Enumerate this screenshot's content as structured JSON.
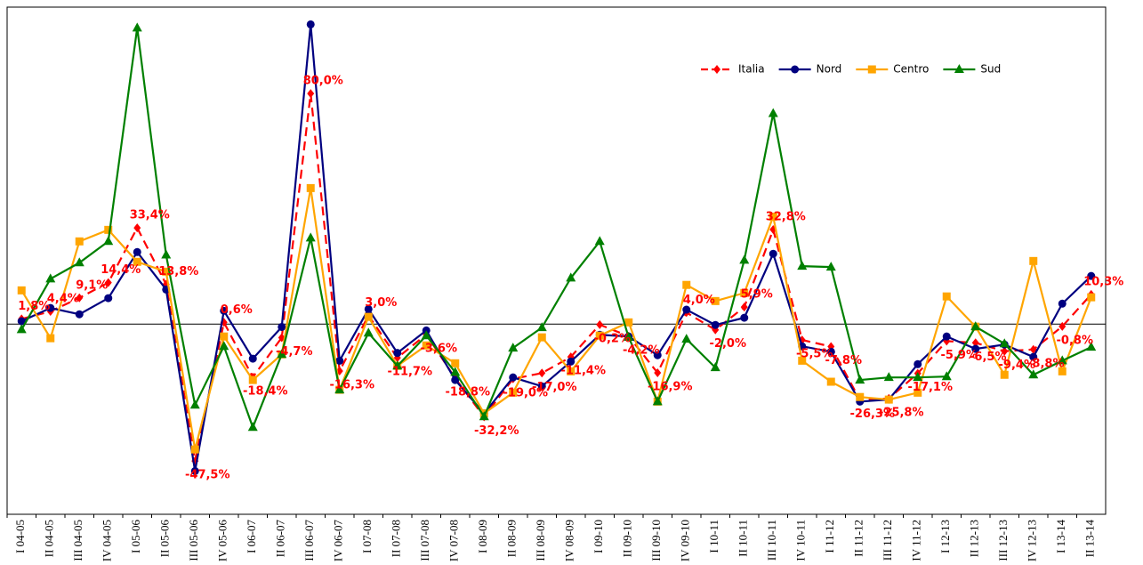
{
  "chart_data": {
    "type": "line",
    "categories": [
      "I 04-05",
      "II 04-05",
      "III 04-05",
      "IV 04-05",
      "I 05-06",
      "II 05-06",
      "III 05-06",
      "IV 05-06",
      "I 06-07",
      "II 06-07",
      "III 06-07",
      "IV 06-07",
      "I 07-08",
      "II 07-08",
      "III 07-08",
      "IV 07-08",
      "I 08-09",
      "II 08-09",
      "III 08-09",
      "IV 08-09",
      "I 09-10",
      "II 09-10",
      "III 09-10",
      "IV 09-10",
      "I 10-11",
      "II 10-11",
      "III 10-11",
      "IV 10-11",
      "I 11-12",
      "II 11-12",
      "III 11-12",
      "IV 11-12",
      "I 12-13",
      "II 12-13",
      "III 12-13",
      "IV 12-13",
      "I 13-14",
      "II 13-14"
    ],
    "ylim": [
      -66,
      110
    ],
    "legend": "top-right",
    "series": [
      {
        "name": "Italia",
        "color": "#ff0000",
        "marker": "diamond",
        "dashed": true,
        "values": [
          1.8,
          4.4,
          9.1,
          14.4,
          33.4,
          13.8,
          -47.5,
          0.6,
          -18.4,
          -4.7,
          80.0,
          -16.3,
          3.0,
          -11.7,
          -3.6,
          -18.8,
          -32.2,
          -19.0,
          -17.0,
          -11.4,
          -0.2,
          -4.2,
          -16.9,
          4.0,
          -2.0,
          5.9,
          32.8,
          -5.5,
          -7.8,
          -26.3,
          -25.8,
          -17.1,
          -5.9,
          -6.5,
          -9.4,
          -8.8,
          -0.8,
          10.3
        ],
        "value_labels": [
          "1,8%",
          "4,4%",
          "9,1%",
          "14,4%",
          "33,4%",
          "13,8%",
          "-47,5%",
          "0,6%",
          "-18,4%",
          "-4,7%",
          "80,0%",
          "-16,3%",
          "3,0%",
          "-11,7%",
          "-3,6%",
          "-18,8%",
          "-32,2%",
          "-19,0%",
          "-17,0%",
          "-11,4%",
          "-0,2%",
          "-4,2%",
          "-16,9%",
          "4,0%",
          "-2,0%",
          "5,9%",
          "32,8%",
          "-5,5%",
          "-7,8%",
          "-26,3%",
          "-25,8%",
          "-17,1%",
          "-5,9%",
          "-6,5%",
          "-9,4%",
          "-8,8%",
          "-0,8%",
          "10,3%"
        ]
      },
      {
        "name": "Nord",
        "color": "#000080",
        "marker": "circle",
        "values": [
          1,
          5.6,
          3.4,
          9,
          25,
          12,
          -51,
          4.6,
          -12,
          -1,
          104,
          -12.7,
          5.2,
          -10,
          -2.2,
          -19.4,
          -31,
          -18.5,
          -21.6,
          -13,
          -3.7,
          -4.3,
          -10.8,
          5,
          -0.3,
          2.2,
          24.4,
          -7.7,
          -9.6,
          -26.9,
          -26.2,
          -13.9,
          -4.3,
          -8.6,
          -7.1,
          -11.4,
          7.1,
          16.7
        ]
      },
      {
        "name": "Centro",
        "color": "#ffa500",
        "marker": "square",
        "values": [
          11.7,
          -4.9,
          28.7,
          32.7,
          21.6,
          18.2,
          -43.5,
          -4.3,
          -19.4,
          -10.5,
          47.2,
          -22.8,
          2.5,
          -14.5,
          -7.4,
          -13.6,
          -31,
          -23.8,
          -4.6,
          -16.4,
          -4,
          0.6,
          -26.9,
          13.6,
          8,
          10.8,
          37.3,
          -12.7,
          -20,
          -25.3,
          -26.2,
          -23.8,
          9.6,
          -0.9,
          -17.6,
          21.9,
          -16.4,
          9.3
        ]
      },
      {
        "name": "Sud",
        "color": "#008000",
        "marker": "triangle",
        "values": [
          -1.9,
          15.7,
          21.3,
          28.7,
          102.8,
          24,
          -28.1,
          -7.7,
          -35.8,
          -10.5,
          29.9,
          -22.8,
          -3.1,
          -14.5,
          -4,
          -16.7,
          -32.1,
          -8.3,
          -1.2,
          16,
          28.7,
          -4.6,
          -26.9,
          -5.2,
          -15.1,
          22.2,
          73.1,
          20.1,
          19.8,
          -19.4,
          -18.5,
          -18.5,
          -18.2,
          -0.9,
          -6.8,
          -17.6,
          -12.7,
          -8
        ]
      }
    ]
  }
}
